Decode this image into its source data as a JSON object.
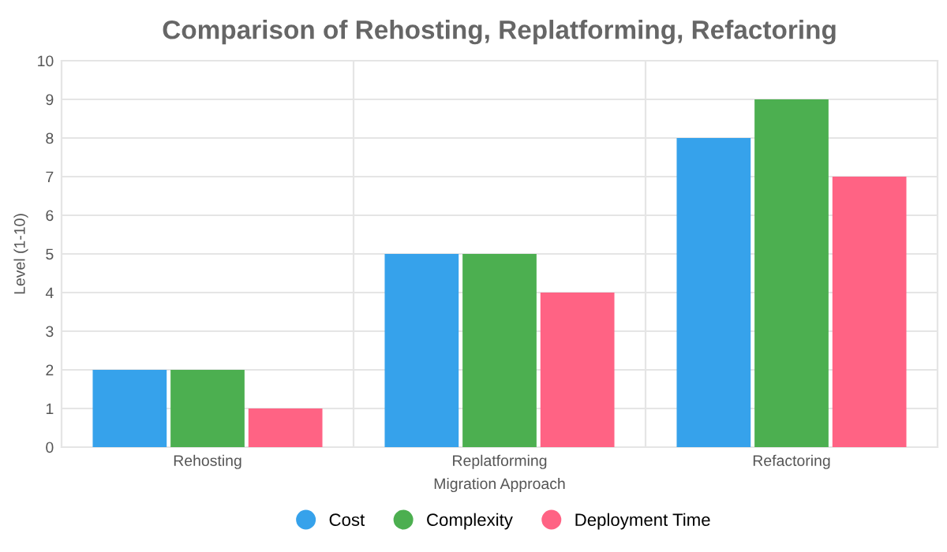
{
  "chart_data": {
    "type": "bar",
    "title": "Comparison of Rehosting, Replatforming, Refactoring",
    "xlabel": "Migration Approach",
    "ylabel": "Level (1-10)",
    "categories": [
      "Rehosting",
      "Replatforming",
      "Refactoring"
    ],
    "series": [
      {
        "name": "Cost",
        "color": "#36a2eb",
        "values": [
          2,
          5,
          8
        ]
      },
      {
        "name": "Complexity",
        "color": "#4caf50",
        "values": [
          2,
          5,
          9
        ]
      },
      {
        "name": "Deployment Time",
        "color": "#ff6384",
        "values": [
          1,
          4,
          7
        ]
      }
    ],
    "ylim": [
      0,
      10
    ],
    "yticks": [
      0,
      1,
      2,
      3,
      4,
      5,
      6,
      7,
      8,
      9,
      10
    ],
    "grid": true,
    "legend": "bottom"
  }
}
